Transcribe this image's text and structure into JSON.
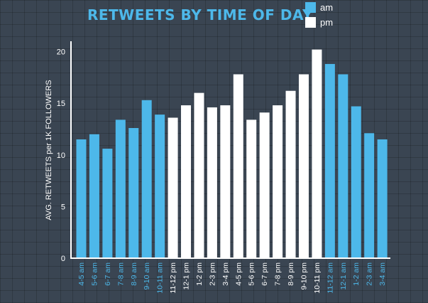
{
  "chart_data": {
    "type": "bar",
    "title": "RETWEETS BY TIME OF DAY",
    "ylabel": "AVG. RETWEETS per 1K FOLLOWERS",
    "xlabel": "",
    "ylim": [
      0,
      21
    ],
    "yticks": [
      0,
      5,
      10,
      15,
      20
    ],
    "categories": [
      "4-5 am",
      "5-6 am",
      "6-7 am",
      "7-8 am",
      "8-9 am",
      "9-10 am",
      "10-11 am",
      "11-12 pm",
      "12-1 pm",
      "1-2 pm",
      "2-3 pm",
      "3-4 pm",
      "4-5 pm",
      "5-6 pm",
      "6-7 pm",
      "7-8 pm",
      "8-9 pm",
      "9-10 pm",
      "10-11 pm",
      "11-12 am",
      "12-1 am",
      "1-2 am",
      "2-3 am",
      "3-4 am"
    ],
    "values": [
      11.5,
      12.0,
      10.6,
      13.4,
      12.6,
      15.3,
      13.9,
      13.6,
      14.8,
      16.0,
      14.6,
      14.8,
      17.8,
      13.4,
      14.1,
      14.8,
      16.2,
      17.8,
      20.2,
      18.8,
      17.8,
      14.7,
      12.1,
      11.5
    ],
    "group": [
      "am",
      "am",
      "am",
      "am",
      "am",
      "am",
      "am",
      "pm",
      "pm",
      "pm",
      "pm",
      "pm",
      "pm",
      "pm",
      "pm",
      "pm",
      "pm",
      "pm",
      "pm",
      "am",
      "am",
      "am",
      "am",
      "am"
    ],
    "legend": [
      {
        "key": "am",
        "label": "am",
        "color": "#4db8ea"
      },
      {
        "key": "pm",
        "label": "pm",
        "color": "#ffffff"
      }
    ],
    "colors": {
      "title": "#4db8ea",
      "axis": "#ffffff",
      "am": "#4db8ea",
      "pm": "#ffffff",
      "text": "#ffffff"
    },
    "grid": false,
    "legend_position": "top-right"
  }
}
